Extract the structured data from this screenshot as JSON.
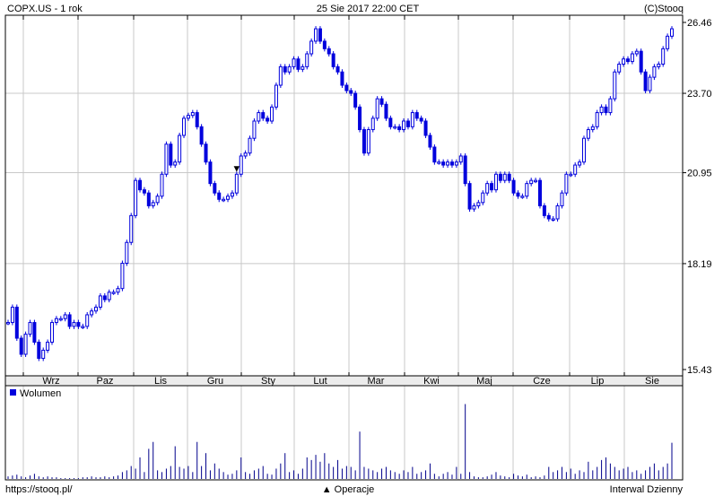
{
  "header": {
    "title": "COPX.US - 1 rok",
    "timestamp": "25 Sie 2017 22:00 CET",
    "copyright": "(C)Stooq"
  },
  "footer": {
    "url": "https://stooq.pl/",
    "operations": "▲ Operacje",
    "interval": "Interwal Dzienny"
  },
  "colors": {
    "candle": "#0000dd",
    "grid": "#c8c8c8",
    "axis_band": "#ececec"
  },
  "chart_data": [
    {
      "type": "candlestick",
      "scale": "log",
      "grid": true,
      "ylim": [
        15.43,
        26.46
      ],
      "yticks": [
        "26.46",
        "23.70",
        "20.95",
        "18.19",
        "15.43"
      ],
      "ytick_values": [
        26.46,
        23.7,
        20.95,
        18.19,
        15.43
      ],
      "month_labels": [
        "Wrz",
        "Paz",
        "Lis",
        "Gru",
        "Sty",
        "Lut",
        "Mar",
        "Kwi",
        "Maj",
        "Cze",
        "Lip",
        "Sie"
      ],
      "marker": {
        "symbol": "▼",
        "date_index": 52,
        "price": 21.1
      },
      "close": [
        16.6,
        17.0,
        16.2,
        15.8,
        16.3,
        16.6,
        16.1,
        15.7,
        15.9,
        16.1,
        16.6,
        16.7,
        16.7,
        16.8,
        16.5,
        16.6,
        16.5,
        16.5,
        16.8,
        16.9,
        17.0,
        17.3,
        17.2,
        17.4,
        17.4,
        17.5,
        18.2,
        18.8,
        19.6,
        20.7,
        20.4,
        20.3,
        19.9,
        20.0,
        20.2,
        20.9,
        21.9,
        21.2,
        21.3,
        22.2,
        22.8,
        22.9,
        23.0,
        22.5,
        21.9,
        21.3,
        20.6,
        20.3,
        20.1,
        20.1,
        20.2,
        20.3,
        20.9,
        21.5,
        21.6,
        22.1,
        22.7,
        23.0,
        22.8,
        22.7,
        23.2,
        24.0,
        24.7,
        24.5,
        24.7,
        25.0,
        24.6,
        24.7,
        25.2,
        25.7,
        26.2,
        25.7,
        25.4,
        25.2,
        24.7,
        24.5,
        24.0,
        23.8,
        23.7,
        23.2,
        22.4,
        21.6,
        22.4,
        22.8,
        23.5,
        23.3,
        22.8,
        22.5,
        22.5,
        22.4,
        22.7,
        22.5,
        23.0,
        22.8,
        22.7,
        22.2,
        21.8,
        21.3,
        21.3,
        21.2,
        21.3,
        21.2,
        21.3,
        21.5,
        20.6,
        19.8,
        19.9,
        20.0,
        20.3,
        20.6,
        20.4,
        20.9,
        20.7,
        20.9,
        20.7,
        20.3,
        20.2,
        20.2,
        20.6,
        20.7,
        20.7,
        19.9,
        19.6,
        19.5,
        19.5,
        19.9,
        20.3,
        20.9,
        20.9,
        21.2,
        21.3,
        22.1,
        22.4,
        22.5,
        23.0,
        23.2,
        23.0,
        23.5,
        24.5,
        24.8,
        25.0,
        24.9,
        25.2,
        25.3,
        24.5,
        23.8,
        24.3,
        24.7,
        24.8,
        25.4,
        25.9,
        26.2
      ]
    },
    {
      "type": "bar",
      "legend": "Wolumen",
      "legend_placement": "top-left",
      "ylim": [
        0,
        100
      ],
      "values": [
        3,
        4,
        5,
        3,
        2,
        4,
        6,
        3,
        2,
        3,
        2,
        2,
        1,
        1,
        1,
        1,
        1,
        2,
        2,
        3,
        2,
        2,
        3,
        2,
        3,
        4,
        8,
        10,
        15,
        12,
        25,
        8,
        35,
        43,
        10,
        8,
        12,
        15,
        38,
        14,
        12,
        15,
        8,
        43,
        15,
        30,
        10,
        18,
        12,
        8,
        5,
        6,
        10,
        25,
        8,
        6,
        10,
        12,
        15,
        6,
        5,
        12,
        18,
        30,
        8,
        10,
        6,
        12,
        25,
        22,
        28,
        20,
        30,
        18,
        14,
        22,
        12,
        15,
        14,
        10,
        55,
        14,
        12,
        10,
        8,
        12,
        14,
        10,
        8,
        6,
        10,
        8,
        14,
        6,
        8,
        10,
        18,
        6,
        3,
        6,
        8,
        5,
        14,
        6,
        87,
        8,
        3,
        2,
        2,
        3,
        5,
        8,
        4,
        3,
        2,
        6,
        4,
        3,
        5,
        2,
        3,
        2,
        4,
        14,
        8,
        10,
        14,
        8,
        12,
        6,
        10,
        8,
        20,
        10,
        14,
        22,
        25,
        18,
        14,
        10,
        12,
        14,
        8,
        10,
        6,
        10,
        14,
        18,
        10,
        14,
        18,
        42
      ]
    }
  ]
}
